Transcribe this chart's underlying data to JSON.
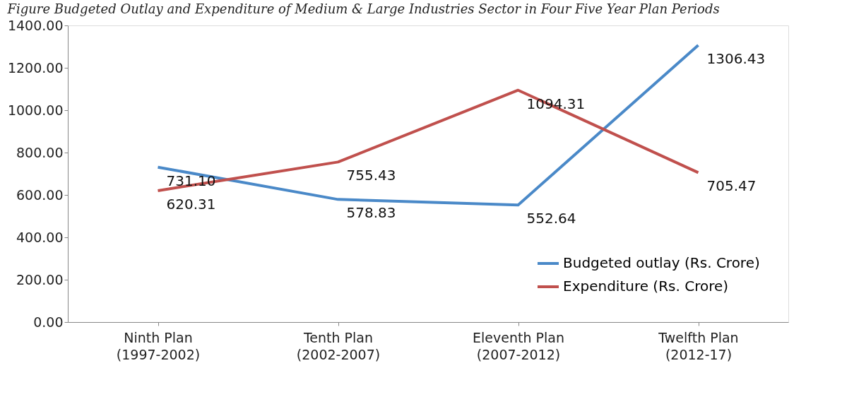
{
  "chart_data": {
    "type": "line",
    "title": "Figure Budgeted Outlay and Expenditure of Medium & Large Industries Sector in Four Five Year Plan Periods",
    "categories": [
      "Ninth Plan\n(1997-2002)",
      "Tenth Plan\n(2002-2007)",
      "Eleventh Plan\n(2007-2012)",
      "Twelfth Plan\n(2012-17)"
    ],
    "series": [
      {
        "name": "Budgeted outlay (Rs. Crore)",
        "color": "#4a89c8",
        "values": [
          731.1,
          578.83,
          552.64,
          1306.43
        ],
        "value_labels": [
          "731.10",
          "578.83",
          "552.64",
          "1306.43"
        ]
      },
      {
        "name": "Expenditure (Rs. Crore)",
        "color": "#c0504d",
        "values": [
          620.31,
          755.43,
          1094.31,
          705.47
        ],
        "value_labels": [
          "620.31",
          "755.43",
          "1094.31",
          "705.47"
        ]
      }
    ],
    "ylim": [
      0,
      1400
    ],
    "yticks": [
      {
        "value": 0,
        "label": "0.00"
      },
      {
        "value": 200,
        "label": "200.00"
      },
      {
        "value": 400,
        "label": "400.00"
      },
      {
        "value": 600,
        "label": "600.00"
      },
      {
        "value": 800,
        "label": "800.00"
      },
      {
        "value": 1000,
        "label": "1000.00"
      },
      {
        "value": 1200,
        "label": "1200.00"
      },
      {
        "value": 1400,
        "label": "1400.00"
      }
    ],
    "grid": false,
    "legend": "bottom right",
    "marker": "none",
    "line_style": "solid"
  }
}
